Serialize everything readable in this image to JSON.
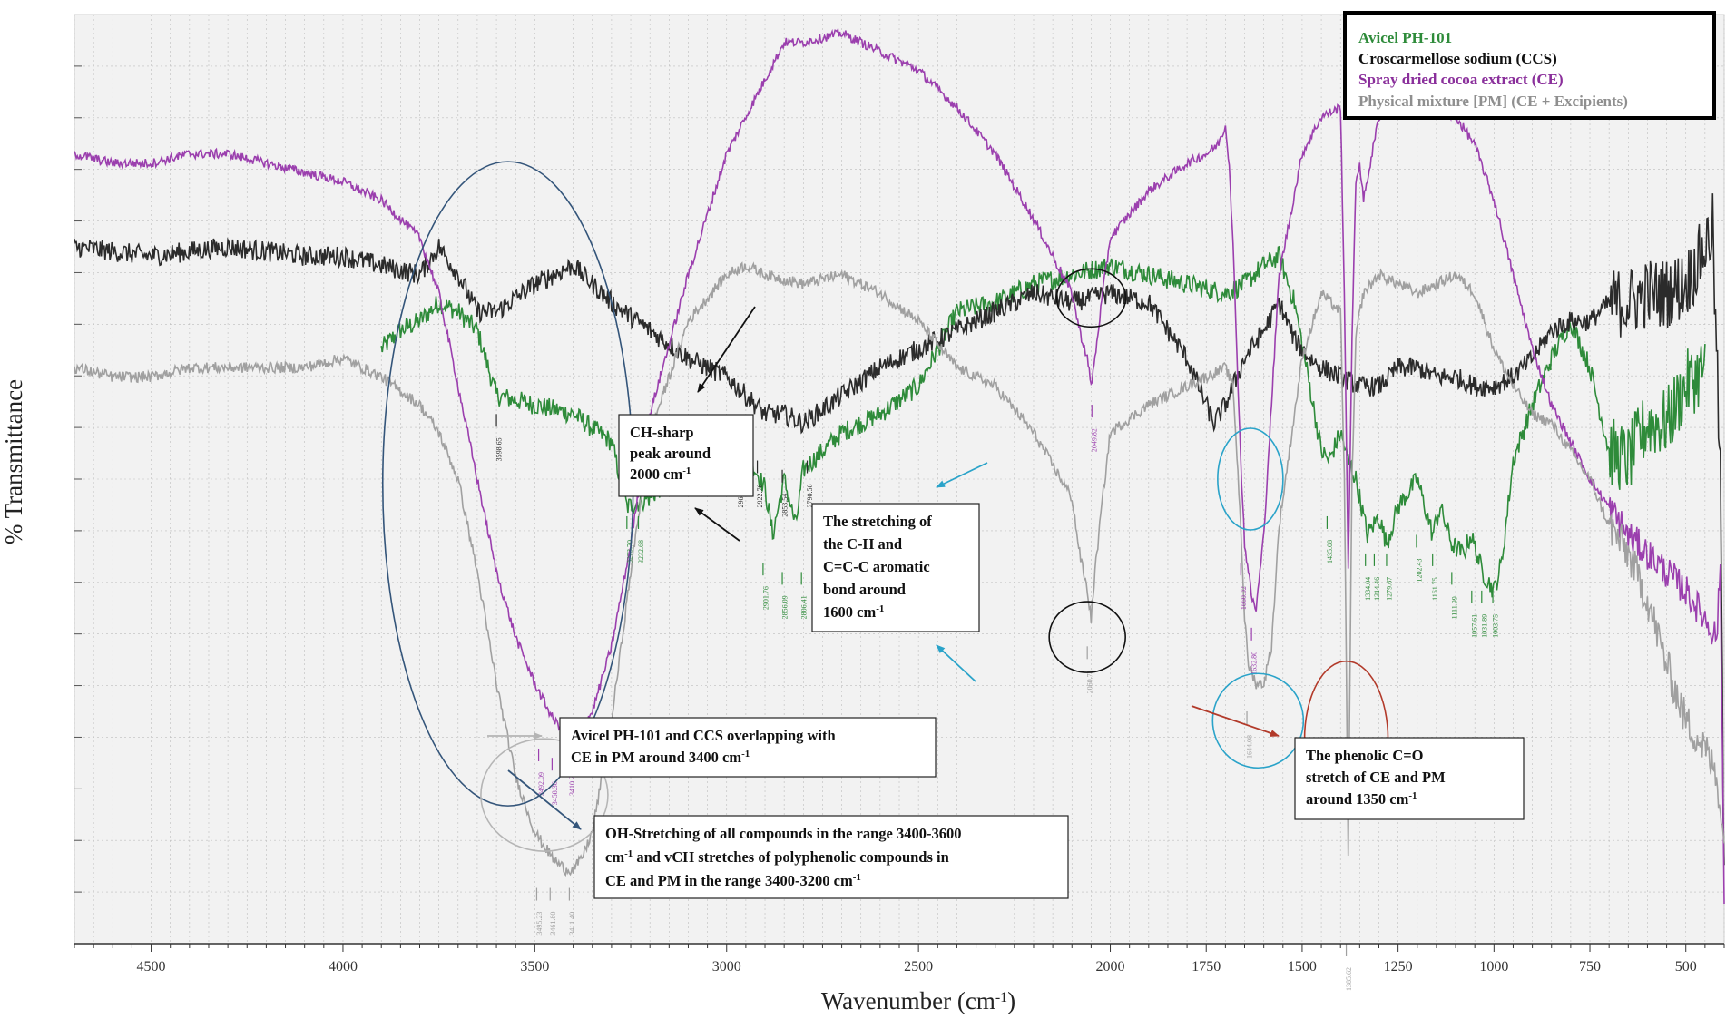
{
  "chart_data": {
    "type": "line",
    "xlabel": "Wavenumber (cm",
    "xlabel_sup": "-1",
    "xlabel_end": ")",
    "ylabel": "% Transmittance",
    "xlim": [
      4700,
      400
    ],
    "x_reversed": true,
    "ylim": [
      0,
      100
    ],
    "grid": true,
    "x_ticks": [
      4500,
      4000,
      3500,
      3000,
      2500,
      2000,
      1750,
      1500,
      1250,
      1000,
      750,
      500
    ],
    "x_tick_labels": [
      "4500",
      "4000",
      "3500",
      "3000",
      "2500",
      "2000",
      "1750",
      "1500",
      "1250",
      "1000",
      "750",
      "500"
    ],
    "legend_position": "top-right",
    "series": [
      {
        "name": "Avicel PH-101",
        "color": "#2e8b3a",
        "noise": 2.2,
        "x": [
          3900,
          3850,
          3800,
          3750,
          3700,
          3650,
          3600,
          3500,
          3400,
          3300,
          3260,
          3200,
          3100,
          3000,
          2950,
          2900,
          2880,
          2850,
          2820,
          2800,
          2700,
          2600,
          2500,
          2400,
          2300,
          2200,
          2100,
          2000,
          1900,
          1800,
          1700,
          1650,
          1600,
          1560,
          1520,
          1480,
          1450,
          1430,
          1400,
          1380,
          1360,
          1330,
          1300,
          1280,
          1250,
          1200,
          1160,
          1140,
          1110,
          1080,
          1060,
          1030,
          1000,
          980,
          950,
          900,
          850,
          800,
          750,
          700,
          650,
          600,
          550,
          500,
          450
        ],
        "y": [
          64,
          66,
          67,
          69,
          68,
          66,
          59,
          58,
          57,
          54,
          47,
          48,
          52,
          54,
          53,
          49,
          44,
          50,
          45,
          51,
          55,
          57,
          60,
          68,
          69,
          71,
          72,
          73,
          72,
          71,
          70,
          71,
          73,
          74,
          69,
          60,
          53,
          52,
          55,
          52,
          50,
          44,
          46,
          43,
          47,
          50,
          44,
          47,
          43,
          42,
          44,
          40,
          38,
          41,
          52,
          58,
          63,
          67,
          62,
          53,
          52,
          56,
          56,
          60,
          62
        ]
      },
      {
        "name": "Croscarmellose sodium (CCS)",
        "color": "#2b2b2b",
        "noise": 2.2,
        "x": [
          4700,
          4500,
          4300,
          4100,
          4000,
          3900,
          3800,
          3750,
          3700,
          3650,
          3600,
          3500,
          3400,
          3300,
          3200,
          3100,
          3000,
          2950,
          2900,
          2850,
          2800,
          2700,
          2600,
          2500,
          2400,
          2300,
          2200,
          2100,
          2000,
          1900,
          1800,
          1750,
          1730,
          1700,
          1650,
          1600,
          1560,
          1520,
          1480,
          1450,
          1400,
          1350,
          1300,
          1250,
          1200,
          1150,
          1100,
          1050,
          1000,
          950,
          900,
          850,
          800,
          750,
          700,
          650,
          600,
          550,
          500,
          460,
          430,
          410,
          400
        ],
        "y": [
          75,
          74,
          75,
          74,
          74,
          73,
          72,
          75,
          72,
          68,
          68,
          71,
          73,
          69,
          66,
          63,
          61,
          59,
          57,
          57,
          56,
          59,
          62,
          64,
          66,
          68,
          70,
          69,
          70,
          69,
          63,
          58,
          56,
          58,
          63,
          66,
          69,
          65,
          63,
          62,
          61,
          60,
          60,
          62,
          62,
          61,
          61,
          60,
          60,
          61,
          63,
          66,
          67,
          67,
          69,
          69,
          70,
          70,
          71,
          74,
          77,
          50,
          5
        ]
      },
      {
        "name": "Spray dried cocoa extract (CE)",
        "color": "#9b3fae",
        "noise": 1.0,
        "x": [
          4700,
          4600,
          4500,
          4400,
          4300,
          4200,
          4100,
          4000,
          3900,
          3800,
          3750,
          3700,
          3650,
          3600,
          3550,
          3500,
          3450,
          3420,
          3400,
          3380,
          3350,
          3300,
          3250,
          3200,
          3100,
          3000,
          2900,
          2850,
          2800,
          2700,
          2600,
          2500,
          2400,
          2300,
          2200,
          2100,
          2080,
          2060,
          2050,
          2040,
          2020,
          2000,
          1900,
          1800,
          1750,
          1720,
          1700,
          1690,
          1680,
          1660,
          1650,
          1640,
          1630,
          1620,
          1600,
          1580,
          1560,
          1500,
          1450,
          1400,
          1390,
          1380,
          1370,
          1360,
          1350,
          1340,
          1300,
          1250,
          1200,
          1100,
          1050,
          1000,
          950,
          900,
          850,
          800,
          750,
          700,
          650,
          600,
          500,
          450,
          420,
          410,
          400
        ],
        "y": [
          85,
          84,
          84,
          85,
          85,
          84,
          83,
          82,
          80,
          76,
          70,
          60,
          50,
          40,
          33,
          28,
          24,
          23,
          22,
          23,
          25,
          32,
          43,
          57,
          72,
          85,
          93,
          97,
          97,
          98,
          96,
          94,
          90,
          85,
          78,
          70,
          66,
          63,
          60,
          63,
          70,
          76,
          81,
          84,
          85,
          86,
          88,
          84,
          75,
          52,
          43,
          40,
          37,
          36,
          44,
          58,
          72,
          85,
          89,
          90,
          70,
          40,
          65,
          82,
          84,
          80,
          89,
          91,
          90,
          89,
          86,
          80,
          72,
          64,
          58,
          54,
          50,
          47,
          44,
          42,
          38,
          35,
          33,
          40,
          5
        ]
      },
      {
        "name": "Physical mixture [PM] (CE + Excipients)",
        "color": "#a0a0a0",
        "noise": 1.2,
        "x": [
          4700,
          4600,
          4500,
          4400,
          4300,
          4200,
          4100,
          4000,
          3900,
          3800,
          3750,
          3700,
          3650,
          3600,
          3550,
          3500,
          3450,
          3420,
          3400,
          3380,
          3350,
          3300,
          3250,
          3200,
          3100,
          3000,
          2950,
          2900,
          2800,
          2700,
          2600,
          2500,
          2400,
          2300,
          2200,
          2100,
          2080,
          2060,
          2050,
          2040,
          2020,
          2000,
          1900,
          1800,
          1750,
          1700,
          1680,
          1660,
          1650,
          1640,
          1620,
          1600,
          1580,
          1560,
          1500,
          1450,
          1400,
          1390,
          1380,
          1370,
          1360,
          1350,
          1340,
          1300,
          1250,
          1200,
          1100,
          1050,
          1000,
          950,
          900,
          850,
          800,
          750,
          700,
          650,
          600,
          550,
          500,
          450,
          420,
          410,
          400
        ],
        "y": [
          62,
          61,
          61,
          62,
          62,
          62,
          62,
          63,
          61,
          58,
          55,
          50,
          40,
          28,
          18,
          12,
          9,
          8,
          8,
          9,
          12,
          24,
          40,
          55,
          67,
          72,
          73,
          72,
          71,
          72,
          70,
          67,
          62,
          60,
          55,
          48,
          42,
          38,
          35,
          40,
          48,
          55,
          58,
          60,
          61,
          62,
          60,
          45,
          35,
          30,
          28,
          28,
          32,
          45,
          63,
          70,
          68,
          50,
          10,
          50,
          65,
          68,
          70,
          72,
          71,
          70,
          72,
          70,
          64,
          60,
          57,
          56,
          53,
          50,
          45,
          42,
          37,
          30,
          24,
          21,
          18,
          15,
          10
        ]
      }
    ],
    "peak_labels": [
      {
        "text": "3598.65",
        "x": 3600,
        "y": 57,
        "color": "#2b2b2b"
      },
      {
        "text": "3273.70",
        "x": 3260,
        "y": 46,
        "color": "#2e8b3a"
      },
      {
        "text": "3232.68",
        "x": 3230,
        "y": 46,
        "color": "#2e8b3a"
      },
      {
        "text": "2968.00",
        "x": 2970,
        "y": 52,
        "color": "#2b2b2b"
      },
      {
        "text": "2922.76",
        "x": 2920,
        "y": 52,
        "color": "#2b2b2b"
      },
      {
        "text": "2853.54",
        "x": 2855,
        "y": 51,
        "color": "#2b2b2b"
      },
      {
        "text": "2790.56",
        "x": 2790,
        "y": 52,
        "color": "#2b2b2b"
      },
      {
        "text": "2901.76",
        "x": 2905,
        "y": 41,
        "color": "#2e8b3a"
      },
      {
        "text": "2856.09",
        "x": 2855,
        "y": 40,
        "color": "#2e8b3a"
      },
      {
        "text": "2806.41",
        "x": 2805,
        "y": 40,
        "color": "#2e8b3a"
      },
      {
        "text": "3492.09",
        "x": 3490,
        "y": 21,
        "color": "#9b3fae"
      },
      {
        "text": "3458.36",
        "x": 3455,
        "y": 20,
        "color": "#9b3fae"
      },
      {
        "text": "3410.22",
        "x": 3410,
        "y": 21,
        "color": "#9b3fae"
      },
      {
        "text": "2049.82",
        "x": 2048,
        "y": 58,
        "color": "#9b3fae"
      },
      {
        "text": "1660.02",
        "x": 1660,
        "y": 41,
        "color": "#9b3fae"
      },
      {
        "text": "1632.80",
        "x": 1632,
        "y": 34,
        "color": "#9b3fae"
      },
      {
        "text": "3495.23",
        "x": 3495,
        "y": 6,
        "color": "#a0a0a0"
      },
      {
        "text": "3461.80",
        "x": 3460,
        "y": 6,
        "color": "#a0a0a0"
      },
      {
        "text": "3411.40",
        "x": 3410,
        "y": 6,
        "color": "#a0a0a0"
      },
      {
        "text": "2060.71",
        "x": 2060,
        "y": 32,
        "color": "#a0a0a0"
      },
      {
        "text": "1644.08",
        "x": 1644,
        "y": 25,
        "color": "#a0a0a0"
      },
      {
        "text": "1385.62",
        "x": 1385,
        "y": 0,
        "color": "#a0a0a0"
      },
      {
        "text": "1435.08",
        "x": 1435,
        "y": 46,
        "color": "#2e8b3a"
      },
      {
        "text": "1334.04",
        "x": 1335,
        "y": 42,
        "color": "#2e8b3a"
      },
      {
        "text": "1314.46",
        "x": 1312,
        "y": 42,
        "color": "#2e8b3a"
      },
      {
        "text": "1279.67",
        "x": 1280,
        "y": 42,
        "color": "#2e8b3a"
      },
      {
        "text": "1202.43",
        "x": 1202,
        "y": 44,
        "color": "#2e8b3a"
      },
      {
        "text": "1161.75",
        "x": 1160,
        "y": 42,
        "color": "#2e8b3a"
      },
      {
        "text": "1111.99",
        "x": 1110,
        "y": 40,
        "color": "#2e8b3a"
      },
      {
        "text": "1057.61",
        "x": 1058,
        "y": 38,
        "color": "#2e8b3a"
      },
      {
        "text": "1031.89",
        "x": 1032,
        "y": 38,
        "color": "#2e8b3a"
      },
      {
        "text": "1003.75",
        "x": 1003,
        "y": 38,
        "color": "#2e8b3a"
      }
    ],
    "annotations": [
      {
        "id": "ch-sharp",
        "lines": [
          "CH-sharp",
          "peak around",
          "2000 cm^-1"
        ]
      },
      {
        "id": "ch-aromatic",
        "lines": [
          "The stretching of",
          "the C-H and",
          "C=C-C aromatic",
          "bond around",
          "1600 cm^-1"
        ]
      },
      {
        "id": "overlap",
        "lines": [
          "Avicel PH-101 and CCS overlapping with",
          "CE in PM around 3400 cm^-1"
        ]
      },
      {
        "id": "oh-stretch",
        "lines": [
          "OH-Stretching of all compounds in the range 3400-3600",
          "cm^-1 and vCH stretches of polyphenolic compounds in",
          "CE and PM in the range  3400-3200 cm^-1"
        ]
      },
      {
        "id": "phenolic",
        "lines": [
          "The phenolic C=O",
          "stretch of CE and PM",
          "around 1350 cm^-1"
        ]
      }
    ],
    "annotation_colors": {
      "blue": "#34557a",
      "cyan": "#2aa3c9",
      "black": "#111111",
      "red": "#b23a2a",
      "light-gray": "#b5b5b5"
    }
  }
}
